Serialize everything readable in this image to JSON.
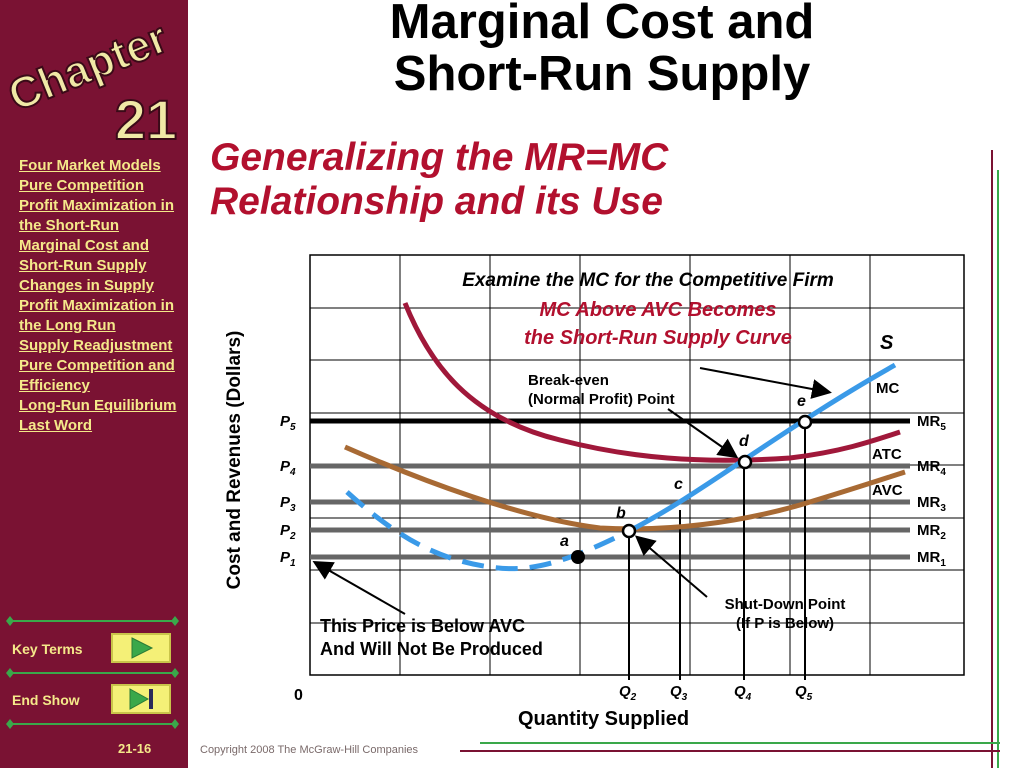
{
  "sidebar": {
    "chapter_word": "Chapter",
    "chapter_number": "21",
    "nav_items": [
      "Four Market Models",
      "Pure Competition",
      "Profit Maximization in the Short-Run",
      "Marginal Cost and Short-Run Supply",
      "Changes in Supply",
      "Profit Maximization in the Long Run",
      "Supply Readjustment",
      "Pure Competition and Efficiency",
      "Long-Run Equilibrium",
      "Last Word"
    ],
    "key_terms_label": "Key Terms",
    "end_show_label": "End Show",
    "slide_number": "21-16"
  },
  "header": {
    "title_line1": "Marginal Cost and",
    "title_line2": "Short-Run Supply",
    "subtitle_line1": "Generalizing the MR=MC",
    "subtitle_line2": "Relationship and its Use"
  },
  "footer": {
    "copyright": "Copyright 2008 The McGraw-Hill Companies"
  },
  "diagram": {
    "heading": "Examine the MC for the Competitive Firm",
    "note_line1": "MC Above AVC Becomes",
    "note_line2": "the Short-Run Supply Curve",
    "y_axis_label": "Cost and Revenues (Dollars)",
    "x_axis_label": "Quantity Supplied",
    "origin": "0",
    "supply_label": "S",
    "curve_labels": {
      "mc": "MC",
      "atc": "ATC",
      "avc": "AVC"
    },
    "price_levels": [
      {
        "p": "P",
        "sub": "5",
        "mr": "MR",
        "mr_sub": "5"
      },
      {
        "p": "P",
        "sub": "4",
        "mr": "MR",
        "mr_sub": "4"
      },
      {
        "p": "P",
        "sub": "3",
        "mr": "MR",
        "mr_sub": "3"
      },
      {
        "p": "P",
        "sub": "2",
        "mr": "MR",
        "mr_sub": "2"
      },
      {
        "p": "P",
        "sub": "1",
        "mr": "MR",
        "mr_sub": "1"
      }
    ],
    "quantities": [
      {
        "q": "Q",
        "sub": "2"
      },
      {
        "q": "Q",
        "sub": "3"
      },
      {
        "q": "Q",
        "sub": "4"
      },
      {
        "q": "Q",
        "sub": "5"
      }
    ],
    "points": [
      "a",
      "b",
      "c",
      "d",
      "e"
    ],
    "break_even_line1": "Break-even",
    "break_even_line2": "(Normal Profit) Point",
    "shutdown_line1": "Shut-Down Point",
    "shutdown_line2": "(If P is Below)",
    "below_avc_line1": "This Price is Below AVC",
    "below_avc_line2": "And Will Not Be Produced",
    "colors": {
      "mc": "#3a9ae8",
      "atc": "#a0183a",
      "avc": "#a86a34",
      "mr_lines": "#666666",
      "grid": "#000000",
      "subtitle": "#b2102e",
      "sidebar": "#7a1233"
    }
  }
}
